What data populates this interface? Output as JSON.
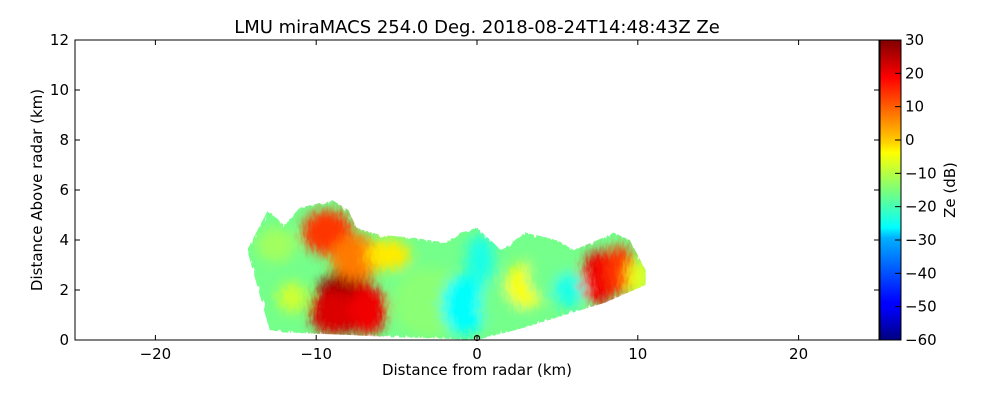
{
  "chart_data": {
    "type": "heatmap",
    "title": "LMU miraMACS 254.0 Deg. 2018-08-24T14:48:43Z  Ze",
    "xlabel": "Distance from radar (km)",
    "ylabel": "Distance Above radar  (km)",
    "xlim": [
      -25,
      25
    ],
    "ylim": [
      0,
      12
    ],
    "xticks": [
      "−20",
      "−10",
      "0",
      "10",
      "20"
    ],
    "xtick_values": [
      -20,
      -10,
      0,
      10,
      20
    ],
    "yticks": [
      "0",
      "2",
      "4",
      "6",
      "8",
      "10",
      "12"
    ],
    "ytick_values": [
      0,
      2,
      4,
      6,
      8,
      10,
      12
    ],
    "grid": false,
    "colorbar": {
      "label": "Ze (dB)",
      "range": [
        -60,
        30
      ],
      "ticks": [
        "−60",
        "−50",
        "−40",
        "−30",
        "−20",
        "−10",
        "0",
        "10",
        "20",
        "30"
      ],
      "tick_values": [
        -60,
        -50,
        -40,
        -30,
        -20,
        -10,
        0,
        10,
        20,
        30
      ],
      "colormap": "jet"
    },
    "echo_top_profile": [
      {
        "x": -14.3,
        "top": 3.6
      },
      {
        "x": -13.0,
        "top": 5.2
      },
      {
        "x": -12.0,
        "top": 4.6
      },
      {
        "x": -11.0,
        "top": 5.3
      },
      {
        "x": -9.0,
        "top": 5.6
      },
      {
        "x": -8.0,
        "top": 5.2
      },
      {
        "x": -7.5,
        "top": 4.5
      },
      {
        "x": -6.0,
        "top": 4.2
      },
      {
        "x": -4.0,
        "top": 4.1
      },
      {
        "x": -2.0,
        "top": 3.9
      },
      {
        "x": -1.0,
        "top": 4.3
      },
      {
        "x": 0.0,
        "top": 4.5
      },
      {
        "x": 1.5,
        "top": 3.6
      },
      {
        "x": 3.0,
        "top": 4.3
      },
      {
        "x": 5.0,
        "top": 4.0
      },
      {
        "x": 6.0,
        "top": 3.6
      },
      {
        "x": 7.5,
        "top": 4.0
      },
      {
        "x": 8.5,
        "top": 4.3
      },
      {
        "x": 9.5,
        "top": 4.0
      },
      {
        "x": 10.5,
        "top": 2.8
      }
    ],
    "echo_base_profile": [
      {
        "x": -12.9,
        "base": 0.4
      },
      {
        "x": -12.0,
        "base": 0.3
      },
      {
        "x": -8.0,
        "base": 0.2
      },
      {
        "x": -5.0,
        "base": 0.1
      },
      {
        "x": -2.0,
        "base": 0.05
      },
      {
        "x": 0.0,
        "base": 0.0
      },
      {
        "x": 3.0,
        "base": 0.5
      },
      {
        "x": 6.0,
        "base": 1.1
      },
      {
        "x": 8.0,
        "base": 1.5
      },
      {
        "x": 10.5,
        "base": 2.2
      }
    ],
    "reflectivity_cells": [
      {
        "x": -8.2,
        "y": 1.5,
        "rx": 1.9,
        "ry": 1.25,
        "ze": 28
      },
      {
        "x": -9.0,
        "y": 1.1,
        "rx": 1.4,
        "ry": 0.9,
        "ze": 22
      },
      {
        "x": -6.8,
        "y": 1.2,
        "rx": 1.2,
        "ry": 1.0,
        "ze": 20
      },
      {
        "x": -9.3,
        "y": 4.3,
        "rx": 1.6,
        "ry": 0.9,
        "ze": 14
      },
      {
        "x": -7.5,
        "y": 3.3,
        "rx": 1.6,
        "ry": 0.9,
        "ze": 8
      },
      {
        "x": -5.5,
        "y": 3.4,
        "rx": 1.4,
        "ry": 0.6,
        "ze": -2
      },
      {
        "x": -12.5,
        "y": 3.8,
        "rx": 1.2,
        "ry": 0.7,
        "ze": -12
      },
      {
        "x": -11.5,
        "y": 1.7,
        "rx": 0.9,
        "ry": 0.6,
        "ze": -8
      },
      {
        "x": -3.0,
        "y": 1.5,
        "rx": 2.2,
        "ry": 1.4,
        "ze": -14
      },
      {
        "x": -0.8,
        "y": 1.4,
        "rx": 1.4,
        "ry": 1.2,
        "ze": -26
      },
      {
        "x": 0.2,
        "y": 3.2,
        "rx": 0.9,
        "ry": 1.0,
        "ze": -24
      },
      {
        "x": 1.8,
        "y": 1.4,
        "rx": 1.6,
        "ry": 1.1,
        "ze": -16
      },
      {
        "x": 3.1,
        "y": 2.2,
        "rx": 1.3,
        "ry": 0.9,
        "ze": -4
      },
      {
        "x": 4.5,
        "y": 2.6,
        "rx": 1.4,
        "ry": 1.0,
        "ze": -16
      },
      {
        "x": 5.7,
        "y": 2.0,
        "rx": 1.0,
        "ry": 0.7,
        "ze": -24
      },
      {
        "x": 7.6,
        "y": 2.5,
        "rx": 1.1,
        "ry": 1.1,
        "ze": 20
      },
      {
        "x": 8.9,
        "y": 2.8,
        "rx": 0.9,
        "ry": 1.0,
        "ze": 14
      },
      {
        "x": 10.0,
        "y": 2.5,
        "rx": 0.7,
        "ry": 0.7,
        "ze": -6
      }
    ]
  }
}
